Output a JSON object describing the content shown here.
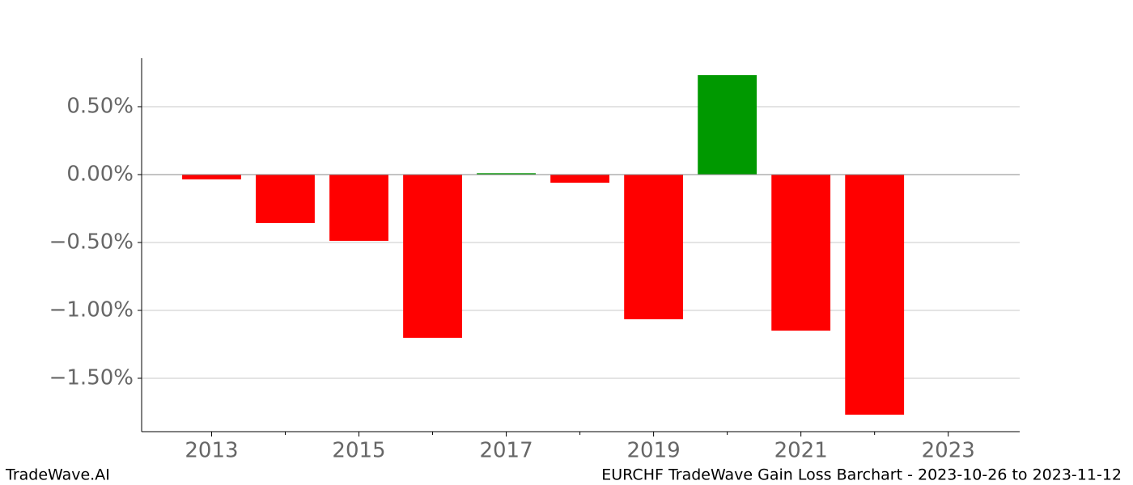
{
  "chart_data": {
    "type": "bar",
    "title": "EURCHF TradeWave Gain Loss Barchart - 2023-10-26 to 2023-11-12",
    "brand": "TradeWave.AI",
    "x": [
      2013,
      2014,
      2015,
      2016,
      2017,
      2018,
      2019,
      2020,
      2021,
      2022
    ],
    "values": [
      -0.035,
      -0.357,
      -0.488,
      -1.202,
      0.01,
      -0.06,
      -1.065,
      0.732,
      -1.149,
      -1.768
    ],
    "positive_color": "#009900",
    "negative_color": "#ff0000",
    "xlim": [
      2012.05,
      2023.97
    ],
    "xticks": [
      2013,
      2015,
      2017,
      2019,
      2021,
      2023
    ],
    "xminor_ticks": [
      2014,
      2016,
      2018,
      2020,
      2022
    ],
    "ylim": [
      -1.893,
      0.857
    ],
    "yticks": [
      {
        "value": -1.5,
        "label": "−1.50%"
      },
      {
        "value": -1.0,
        "label": "−1.00%"
      },
      {
        "value": -0.5,
        "label": "−0.50%"
      },
      {
        "value": 0,
        "label": "0.00%"
      },
      {
        "value": 0.5,
        "label": "0.50%"
      }
    ],
    "grid": true
  }
}
